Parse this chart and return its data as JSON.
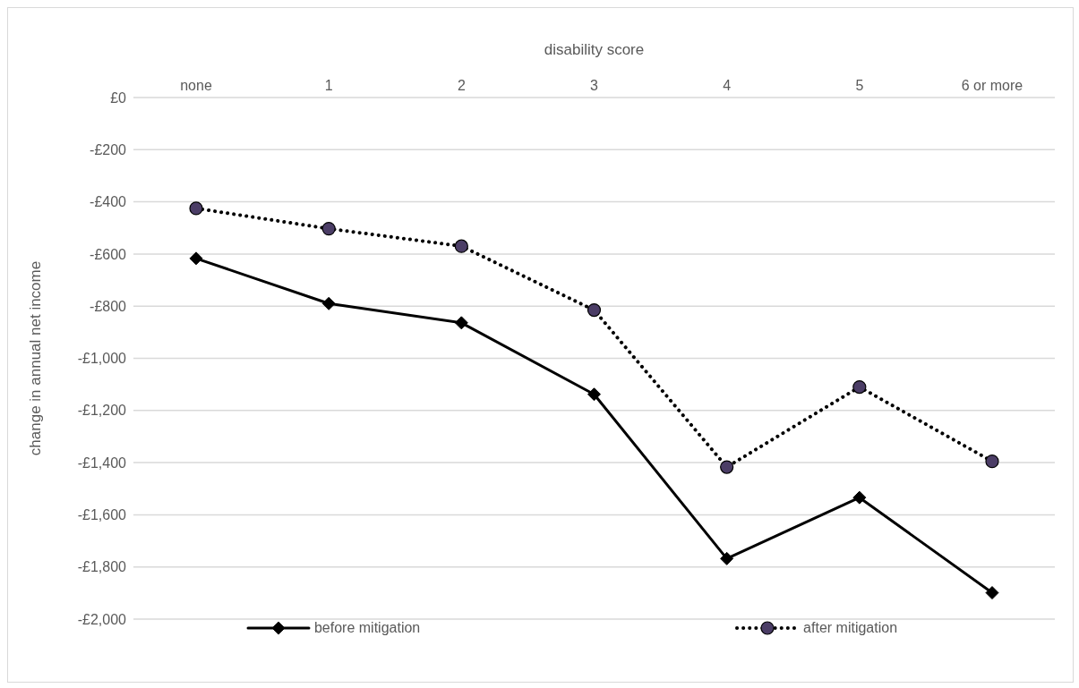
{
  "chart_data": {
    "type": "line",
    "xlabel": "disability score",
    "ylabel": "change in annual net income",
    "categories": [
      "none",
      "1",
      "2",
      "3",
      "4",
      "5",
      "6 or more"
    ],
    "series": [
      {
        "name": "before mitigation",
        "color": "#000000",
        "marker": "diamond",
        "line_style": "solid",
        "values": [
          -617,
          -790,
          -864,
          -1138,
          -1768,
          -1534,
          -1899
        ]
      },
      {
        "name": "after mitigation",
        "color": "#4b3d66",
        "marker": "circle",
        "line_style": "dotted",
        "values": [
          -425,
          -503,
          -570,
          -815,
          -1417,
          -1110,
          -1395
        ]
      }
    ],
    "ylim": [
      -2000,
      0
    ],
    "yticks": [
      {
        "value": 0,
        "label": "£0"
      },
      {
        "value": -200,
        "label": "-£200"
      },
      {
        "value": -400,
        "label": "-£400"
      },
      {
        "value": -600,
        "label": "-£600"
      },
      {
        "value": -800,
        "label": "-£800"
      },
      {
        "value": -1000,
        "label": "-£1,000"
      },
      {
        "value": -1200,
        "label": "-£1,200"
      },
      {
        "value": -1400,
        "label": "-£1,400"
      },
      {
        "value": -1600,
        "label": "-£1,600"
      },
      {
        "value": -1800,
        "label": "-£1,800"
      },
      {
        "value": -2000,
        "label": "-£2,000"
      }
    ],
    "grid": "y",
    "legend": "bottom"
  }
}
